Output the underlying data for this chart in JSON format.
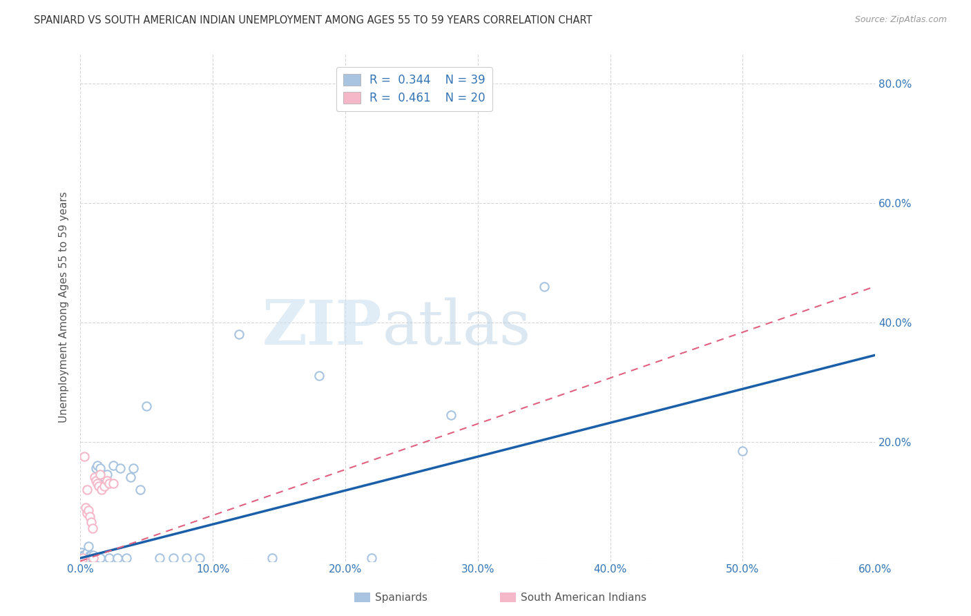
{
  "title": "SPANIARD VS SOUTH AMERICAN INDIAN UNEMPLOYMENT AMONG AGES 55 TO 59 YEARS CORRELATION CHART",
  "source": "Source: ZipAtlas.com",
  "xlabel": "",
  "ylabel": "Unemployment Among Ages 55 to 59 years",
  "xlim": [
    0.0,
    0.6
  ],
  "ylim": [
    0.0,
    0.85
  ],
  "xtick_labels": [
    "0.0%",
    "10.0%",
    "20.0%",
    "30.0%",
    "40.0%",
    "50.0%",
    "60.0%"
  ],
  "xtick_values": [
    0.0,
    0.1,
    0.2,
    0.3,
    0.4,
    0.5,
    0.6
  ],
  "ytick_labels": [
    "",
    "20.0%",
    "40.0%",
    "60.0%",
    "80.0%"
  ],
  "ytick_values": [
    0.0,
    0.2,
    0.4,
    0.6,
    0.8
  ],
  "spaniard_R": 0.344,
  "spaniard_N": 39,
  "sai_R": 0.461,
  "sai_N": 20,
  "spaniard_color": "#a8c4e0",
  "spaniard_line_color": "#1a5fa8",
  "sai_color": "#f4b8c8",
  "sai_line_color": "#e06080",
  "legend_label_spaniard": "Spaniards",
  "legend_label_sai": "South American Indians",
  "watermark_zip": "ZIP",
  "watermark_atlas": "atlas",
  "spaniard_x": [
    0.001,
    0.002,
    0.003,
    0.003,
    0.004,
    0.005,
    0.005,
    0.006,
    0.007,
    0.008,
    0.009,
    0.01,
    0.01,
    0.012,
    0.013,
    0.015,
    0.015,
    0.018,
    0.02,
    0.022,
    0.025,
    0.028,
    0.03,
    0.035,
    0.038,
    0.04,
    0.045,
    0.05,
    0.06,
    0.07,
    0.08,
    0.09,
    0.12,
    0.145,
    0.18,
    0.22,
    0.28,
    0.35,
    0.5
  ],
  "spaniard_y": [
    0.015,
    0.01,
    0.01,
    0.005,
    0.005,
    0.015,
    0.005,
    0.025,
    0.01,
    0.01,
    0.005,
    0.005,
    0.01,
    0.155,
    0.16,
    0.155,
    0.005,
    0.14,
    0.145,
    0.005,
    0.16,
    0.005,
    0.155,
    0.005,
    0.14,
    0.155,
    0.12,
    0.26,
    0.005,
    0.005,
    0.005,
    0.005,
    0.38,
    0.005,
    0.31,
    0.005,
    0.245,
    0.46,
    0.185
  ],
  "sai_x": [
    0.002,
    0.003,
    0.004,
    0.005,
    0.005,
    0.006,
    0.007,
    0.008,
    0.009,
    0.01,
    0.011,
    0.012,
    0.013,
    0.014,
    0.015,
    0.016,
    0.018,
    0.02,
    0.022,
    0.025
  ],
  "sai_y": [
    0.005,
    0.175,
    0.09,
    0.12,
    0.08,
    0.085,
    0.075,
    0.065,
    0.055,
    0.005,
    0.14,
    0.135,
    0.13,
    0.125,
    0.145,
    0.12,
    0.125,
    0.135,
    0.13,
    0.13
  ],
  "sp_line_x0": 0.0,
  "sp_line_y0": 0.005,
  "sp_line_x1": 0.6,
  "sp_line_y1": 0.345,
  "sai_line_x0": 0.0,
  "sai_line_y0": 0.0,
  "sai_line_x1": 0.6,
  "sai_line_y1": 0.46
}
